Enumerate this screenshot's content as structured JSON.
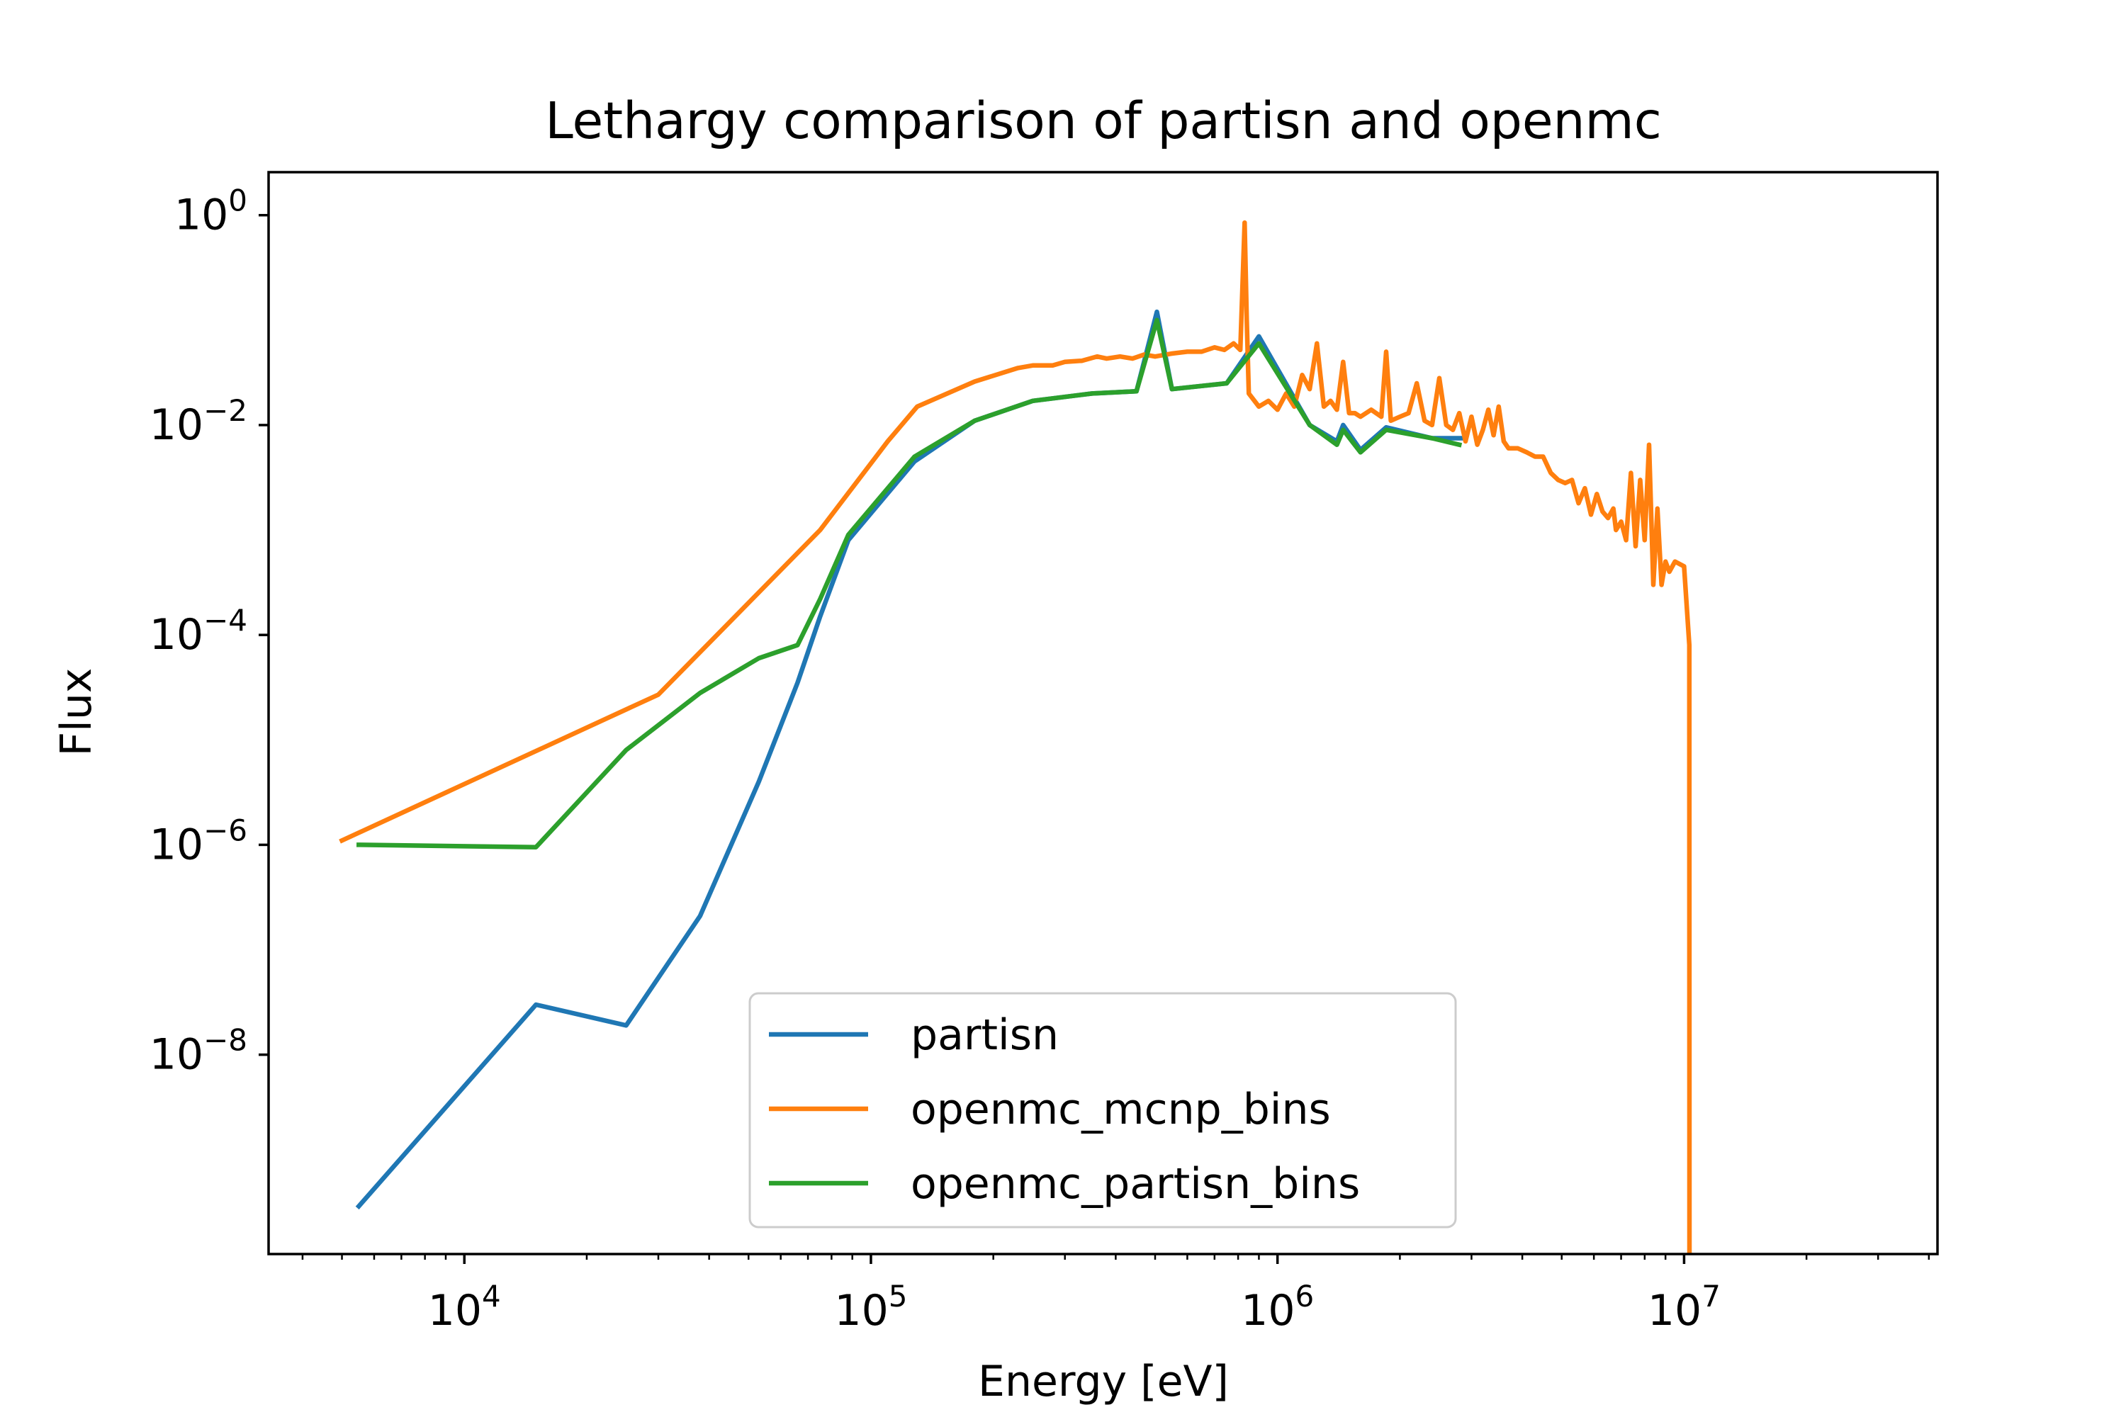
{
  "chart_data": {
    "type": "line",
    "title": "Lethargy comparison of partisn and openmc",
    "xlabel": "Energy [eV]",
    "ylabel": "Flux",
    "xscale": "log",
    "yscale": "log",
    "xlim": [
      3300,
      42000000
    ],
    "ylim": [
      1.26e-10,
      2.57
    ],
    "grid": false,
    "legend_position": "lower-center",
    "x_tick_labels": [
      {
        "value": 10000,
        "base": "10",
        "exp": "4"
      },
      {
        "value": 100000,
        "base": "10",
        "exp": "5"
      },
      {
        "value": 1000000,
        "base": "10",
        "exp": "6"
      },
      {
        "value": 10000000,
        "base": "10",
        "exp": "7"
      }
    ],
    "y_tick_labels": [
      {
        "value": 1,
        "base": "10",
        "exp": "0"
      },
      {
        "value": 0.01,
        "base": "10",
        "exp": "−2"
      },
      {
        "value": 0.0001,
        "base": "10",
        "exp": "−4"
      },
      {
        "value": 1e-06,
        "base": "10",
        "exp": "−6"
      },
      {
        "value": 1e-08,
        "base": "10",
        "exp": "−8"
      }
    ],
    "series": [
      {
        "name": "partisn",
        "color": "#1f77b4",
        "points": [
          [
            5500,
            3.6e-10
          ],
          [
            15000,
            3e-08
          ],
          [
            25000,
            1.9e-08
          ],
          [
            38000,
            2.1e-07
          ],
          [
            53000,
            4e-06
          ],
          [
            66000,
            3.5e-05
          ],
          [
            75000,
            0.00015
          ],
          [
            88000,
            0.0008
          ],
          [
            128000,
            0.0045
          ],
          [
            180000,
            0.011
          ],
          [
            250000,
            0.017
          ],
          [
            350000,
            0.02
          ],
          [
            450000,
            0.021
          ],
          [
            505000,
            0.12
          ],
          [
            550000,
            0.022
          ],
          [
            750000,
            0.025
          ],
          [
            900000,
            0.07
          ],
          [
            1200000,
            0.01
          ],
          [
            1400000,
            0.007
          ],
          [
            1450000,
            0.01
          ],
          [
            1600000,
            0.0058
          ],
          [
            1850000,
            0.0095
          ],
          [
            2400000,
            0.0075
          ],
          [
            2900000,
            0.0075
          ]
        ]
      },
      {
        "name": "openmc_mcnp_bins",
        "color": "#ff7f0e",
        "points": [
          [
            5000,
            1.1e-06
          ],
          [
            30000,
            2.7e-05
          ],
          [
            75000,
            0.001
          ],
          [
            110000,
            0.007
          ],
          [
            130000,
            0.015
          ],
          [
            180000,
            0.026
          ],
          [
            230000,
            0.035
          ],
          [
            250000,
            0.037
          ],
          [
            280000,
            0.037
          ],
          [
            300000,
            0.04
          ],
          [
            330000,
            0.041
          ],
          [
            360000,
            0.045
          ],
          [
            380000,
            0.043
          ],
          [
            410000,
            0.045
          ],
          [
            440000,
            0.043
          ],
          [
            470000,
            0.047
          ],
          [
            500000,
            0.045
          ],
          [
            550000,
            0.048
          ],
          [
            600000,
            0.05
          ],
          [
            650000,
            0.05
          ],
          [
            700000,
            0.055
          ],
          [
            740000,
            0.052
          ],
          [
            780000,
            0.06
          ],
          [
            810000,
            0.052
          ],
          [
            830000,
            0.85
          ],
          [
            840000,
            0.1
          ],
          [
            850000,
            0.02
          ],
          [
            900000,
            0.015
          ],
          [
            950000,
            0.017
          ],
          [
            1000000,
            0.014
          ],
          [
            1050000,
            0.02
          ],
          [
            1100000,
            0.015
          ],
          [
            1150000,
            0.03
          ],
          [
            1200000,
            0.022
          ],
          [
            1250000,
            0.06
          ],
          [
            1300000,
            0.015
          ],
          [
            1350000,
            0.017
          ],
          [
            1400000,
            0.014
          ],
          [
            1450000,
            0.04
          ],
          [
            1500000,
            0.013
          ],
          [
            1550000,
            0.013
          ],
          [
            1600000,
            0.012
          ],
          [
            1700000,
            0.014
          ],
          [
            1800000,
            0.012
          ],
          [
            1850000,
            0.05
          ],
          [
            1900000,
            0.011
          ],
          [
            2000000,
            0.012
          ],
          [
            2100000,
            0.013
          ],
          [
            2200000,
            0.025
          ],
          [
            2300000,
            0.011
          ],
          [
            2400000,
            0.01
          ],
          [
            2500000,
            0.028
          ],
          [
            2600000,
            0.01
          ],
          [
            2700000,
            0.009
          ],
          [
            2800000,
            0.013
          ],
          [
            2900000,
            0.007
          ],
          [
            3000000,
            0.012
          ],
          [
            3100000,
            0.0065
          ],
          [
            3200000,
            0.009
          ],
          [
            3300000,
            0.014
          ],
          [
            3400000,
            0.008
          ],
          [
            3500000,
            0.015
          ],
          [
            3600000,
            0.007
          ],
          [
            3700000,
            0.006
          ],
          [
            3900000,
            0.006
          ],
          [
            4100000,
            0.0055
          ],
          [
            4300000,
            0.005
          ],
          [
            4500000,
            0.005
          ],
          [
            4700000,
            0.0035
          ],
          [
            4900000,
            0.003
          ],
          [
            5100000,
            0.0028
          ],
          [
            5300000,
            0.003
          ],
          [
            5500000,
            0.0018
          ],
          [
            5700000,
            0.0025
          ],
          [
            5900000,
            0.0014
          ],
          [
            6100000,
            0.0022
          ],
          [
            6300000,
            0.0015
          ],
          [
            6500000,
            0.0013
          ],
          [
            6700000,
            0.0016
          ],
          [
            6800000,
            0.001
          ],
          [
            7000000,
            0.0012
          ],
          [
            7200000,
            0.0008
          ],
          [
            7400000,
            0.0035
          ],
          [
            7600000,
            0.0007
          ],
          [
            7800000,
            0.003
          ],
          [
            8000000,
            0.0008
          ],
          [
            8200000,
            0.0065
          ],
          [
            8400000,
            0.0003
          ],
          [
            8600000,
            0.0016
          ],
          [
            8800000,
            0.0003
          ],
          [
            9000000,
            0.0005
          ],
          [
            9200000,
            0.0004
          ],
          [
            9500000,
            0.0005
          ],
          [
            10000000,
            0.00045
          ],
          [
            10300000,
            8e-05
          ],
          [
            10310000,
            1.26e-10
          ]
        ]
      },
      {
        "name": "openmc_partisn_bins",
        "color": "#2ca02c",
        "points": [
          [
            5500,
            1e-06
          ],
          [
            15000,
            9.5e-07
          ],
          [
            25000,
            8e-06
          ],
          [
            38000,
            2.8e-05
          ],
          [
            53000,
            6e-05
          ],
          [
            66000,
            8e-05
          ],
          [
            75000,
            0.00022
          ],
          [
            88000,
            0.0009
          ],
          [
            128000,
            0.005
          ],
          [
            180000,
            0.011
          ],
          [
            250000,
            0.017
          ],
          [
            350000,
            0.02
          ],
          [
            450000,
            0.021
          ],
          [
            505000,
            0.1
          ],
          [
            550000,
            0.022
          ],
          [
            750000,
            0.025
          ],
          [
            900000,
            0.06
          ],
          [
            1200000,
            0.01
          ],
          [
            1400000,
            0.0065
          ],
          [
            1450000,
            0.009
          ],
          [
            1600000,
            0.0055
          ],
          [
            1850000,
            0.009
          ],
          [
            2400000,
            0.0075
          ],
          [
            2800000,
            0.0065
          ]
        ]
      }
    ]
  }
}
